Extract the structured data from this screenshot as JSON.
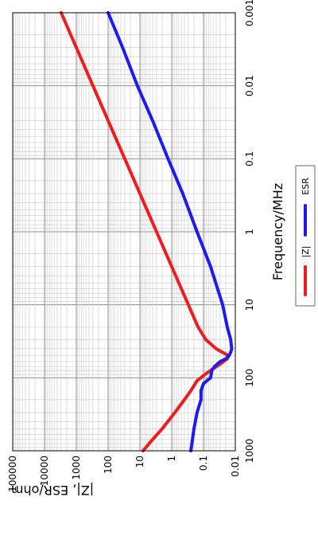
{
  "chart_data": {
    "type": "line",
    "title": "",
    "xlabel": "Frequency/MHz",
    "ylabel": "|Z|, ESR/ohm",
    "x_scale": "log",
    "y_scale": "log",
    "xlim": [
      0.001,
      1000
    ],
    "ylim": [
      0.01,
      100000
    ],
    "x_ticks": [
      "0.001",
      "0.01",
      "0.1",
      "1",
      "10",
      "100",
      "1000"
    ],
    "y_ticks": [
      "0.01",
      "0.1",
      "1",
      "10",
      "100",
      "1000",
      "10000",
      "100000"
    ],
    "grid": true,
    "rotation": "figure rotated 90 degrees clockwise",
    "legend_position": "below x-axis title",
    "series": [
      {
        "name": "|Z|",
        "color": "#ee1c1c",
        "x": [
          0.001,
          0.003,
          0.01,
          0.03,
          0.1,
          0.3,
          1,
          3,
          10,
          20,
          30,
          40,
          45,
          50,
          55,
          65,
          75,
          90,
          110,
          150,
          200,
          300,
          500,
          700,
          1000
        ],
        "y": [
          3000,
          1000,
          300,
          100,
          30,
          10,
          3,
          1,
          0.3,
          0.15,
          0.085,
          0.04,
          0.025,
          0.016,
          0.018,
          0.03,
          0.05,
          0.09,
          0.16,
          0.25,
          0.4,
          0.8,
          2,
          4,
          8
        ]
      },
      {
        "name": "ESR",
        "color": "#1c1cee",
        "x": [
          0.001,
          0.003,
          0.01,
          0.03,
          0.1,
          0.3,
          1,
          3,
          10,
          20,
          30,
          40,
          45,
          50,
          55,
          60,
          70,
          80,
          100,
          120,
          150,
          200,
          300,
          500,
          1000
        ],
        "y": [
          100,
          35,
          12,
          4,
          1.3,
          0.45,
          0.16,
          0.06,
          0.025,
          0.018,
          0.014,
          0.013,
          0.014,
          0.016,
          0.02,
          0.03,
          0.045,
          0.055,
          0.06,
          0.1,
          0.12,
          0.12,
          0.16,
          0.2,
          0.25
        ]
      }
    ]
  }
}
